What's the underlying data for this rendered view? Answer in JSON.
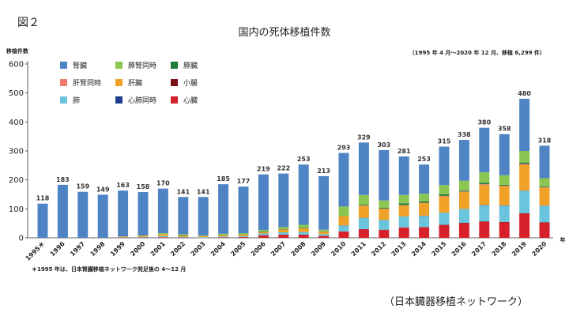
{
  "figure_label": "図２",
  "chart_data": {
    "type": "bar",
    "stacked": true,
    "title": "国内の死体移植件数",
    "ylabel": "移植件数",
    "xlabel": "年",
    "period_note": "（1995 年 4 月〜2020 年 12 月、移植 6,299 件）",
    "footnote": "＊1995 年は、日本腎臓移植ネットワーク発足後の 4〜12 月",
    "source": "（日本臓器移植ネットワーク）",
    "ylim": [
      0,
      600
    ],
    "yticks": [
      0,
      100,
      200,
      300,
      400,
      500,
      600
    ],
    "grid": false,
    "legend_position": "top-left",
    "categories": [
      "1995＊",
      "1996",
      "1997",
      "1998",
      "1999",
      "2000",
      "2001",
      "2002",
      "2003",
      "2004",
      "2005",
      "2006",
      "2007",
      "2008",
      "2009",
      "2010",
      "2011",
      "2012",
      "2013",
      "2014",
      "2015",
      "2016",
      "2017",
      "2018",
      "2019",
      "2020"
    ],
    "totals": [
      118,
      183,
      159,
      149,
      163,
      158,
      170,
      141,
      141,
      185,
      177,
      219,
      222,
      253,
      213,
      293,
      329,
      303,
      281,
      253,
      315,
      338,
      380,
      358,
      480,
      318
    ],
    "series": [
      {
        "name": "心臓",
        "color": "#d7202a",
        "values": [
          0,
          0,
          0,
          0,
          1,
          1,
          2,
          1,
          0,
          2,
          2,
          8,
          10,
          10,
          6,
          21,
          29,
          27,
          35,
          36,
          44,
          50,
          55,
          53,
          83,
          52
        ]
      },
      {
        "name": "小腸",
        "color": "#7a1117",
        "values": [
          0,
          0,
          0,
          0,
          0,
          0,
          0,
          0,
          0,
          0,
          1,
          1,
          1,
          1,
          1,
          1,
          1,
          1,
          1,
          1,
          1,
          2,
          2,
          2,
          2,
          2
        ]
      },
      {
        "name": "肺",
        "color": "#6ac4dd",
        "values": [
          0,
          0,
          0,
          0,
          1,
          2,
          4,
          2,
          2,
          3,
          3,
          6,
          8,
          9,
          6,
          20,
          38,
          33,
          38,
          38,
          42,
          48,
          55,
          56,
          77,
          56
        ]
      },
      {
        "name": "心肺同時",
        "color": "#1f3f8e",
        "values": [
          0,
          0,
          0,
          0,
          0,
          0,
          0,
          0,
          0,
          0,
          0,
          0,
          0,
          0,
          0,
          1,
          1,
          1,
          0,
          1,
          0,
          0,
          1,
          1,
          1,
          1
        ]
      },
      {
        "name": "肝臓",
        "color": "#f0a127",
        "values": [
          0,
          0,
          0,
          0,
          2,
          4,
          6,
          4,
          4,
          4,
          5,
          5,
          10,
          13,
          8,
          32,
          42,
          38,
          38,
          44,
          56,
          58,
          70,
          66,
          88,
          62
        ]
      },
      {
        "name": "肝腎同時",
        "color": "#ef7a70",
        "values": [
          0,
          0,
          0,
          0,
          0,
          0,
          0,
          0,
          0,
          0,
          0,
          0,
          0,
          0,
          0,
          0,
          1,
          1,
          1,
          1,
          2,
          2,
          2,
          2,
          4,
          2
        ]
      },
      {
        "name": "膵臓",
        "color": "#1e7a3a",
        "values": [
          0,
          0,
          0,
          0,
          0,
          0,
          0,
          1,
          0,
          1,
          1,
          2,
          1,
          2,
          1,
          1,
          3,
          3,
          6,
          5,
          5,
          3,
          5,
          3,
          5,
          3
        ]
      },
      {
        "name": "膵腎同時",
        "color": "#8cc652",
        "values": [
          0,
          0,
          0,
          0,
          1,
          1,
          4,
          4,
          2,
          4,
          4,
          5,
          7,
          10,
          6,
          32,
          33,
          25,
          29,
          26,
          32,
          34,
          36,
          33,
          40,
          28
        ]
      },
      {
        "name": "腎臓",
        "color": "#4f84c4",
        "values": [
          118,
          183,
          159,
          149,
          158,
          150,
          154,
          129,
          133,
          171,
          161,
          192,
          185,
          208,
          185,
          185,
          181,
          174,
          133,
          101,
          133,
          141,
          154,
          142,
          180,
          112
        ]
      }
    ]
  },
  "legend": {
    "columns": [
      [
        "腎臓",
        "肝腎同時",
        "肺"
      ],
      [
        "膵腎同時",
        "肝臓",
        "心肺同時"
      ],
      [
        "膵臓",
        "小腸",
        "心臓"
      ]
    ]
  }
}
